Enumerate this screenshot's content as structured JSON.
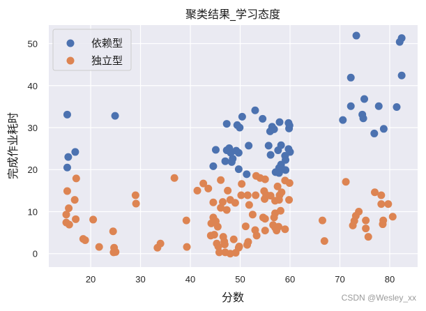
{
  "chart_data": {
    "type": "scatter",
    "title": "聚类结果_学习态度",
    "xlabel": "分数",
    "ylabel": "完成作业耗时",
    "xlim": [
      11.6,
      85.6
    ],
    "ylim": [
      -3.2,
      54.4
    ],
    "xticks": [
      20,
      30,
      40,
      50,
      60,
      70,
      80
    ],
    "yticks": [
      0,
      10,
      20,
      30,
      40,
      50
    ],
    "grid": true,
    "legend_position": "upper left",
    "series": [
      {
        "name": "依赖型",
        "color": "#4c72b0",
        "points": [
          [
            73.3,
            51.9
          ],
          [
            82.4,
            51.3
          ],
          [
            82.0,
            50.4
          ],
          [
            72.2,
            41.9
          ],
          [
            82.4,
            42.4
          ],
          [
            74.9,
            36.8
          ],
          [
            72.2,
            35.1
          ],
          [
            77.8,
            35.1
          ],
          [
            81.4,
            34.9
          ],
          [
            74.5,
            33.1
          ],
          [
            74.7,
            32.2
          ],
          [
            70.6,
            31.8
          ],
          [
            78.8,
            29.7
          ],
          [
            76.9,
            28.6
          ],
          [
            15.3,
            33.1
          ],
          [
            24.9,
            32.8
          ],
          [
            16.9,
            24.2
          ],
          [
            15.5,
            23.0
          ],
          [
            15.3,
            20.5
          ],
          [
            53.0,
            34.1
          ],
          [
            50.4,
            32.6
          ],
          [
            54.5,
            32.1
          ],
          [
            47.3,
            30.9
          ],
          [
            49.4,
            30.6
          ],
          [
            49.9,
            30.0
          ],
          [
            57.9,
            31.3
          ],
          [
            56.4,
            30.2
          ],
          [
            56.8,
            29.6
          ],
          [
            56.0,
            29.1
          ],
          [
            59.7,
            31.1
          ],
          [
            59.9,
            30.5
          ],
          [
            59.8,
            29.8
          ],
          [
            51.7,
            25.7
          ],
          [
            45.1,
            24.7
          ],
          [
            47.3,
            24.6
          ],
          [
            47.8,
            25.1
          ],
          [
            48.1,
            24.0
          ],
          [
            49.2,
            24.5
          ],
          [
            49.7,
            24.0
          ],
          [
            48.5,
            22.6
          ],
          [
            47.0,
            22.0
          ],
          [
            48.3,
            21.8
          ],
          [
            44.6,
            20.8
          ],
          [
            49.7,
            20.1
          ],
          [
            51.3,
            18.9
          ],
          [
            55.7,
            25.7
          ],
          [
            58.2,
            25.8
          ],
          [
            57.6,
            24.6
          ],
          [
            56.1,
            23.5
          ],
          [
            59.7,
            24.9
          ],
          [
            60.0,
            24.2
          ],
          [
            59.0,
            23.3
          ],
          [
            59.1,
            22.3
          ],
          [
            58.2,
            21.2
          ],
          [
            57.8,
            20.4
          ],
          [
            58.5,
            20.1
          ],
          [
            57.1,
            19.4
          ],
          [
            59.1,
            19.9
          ],
          [
            57.8,
            19.2
          ]
        ]
      },
      {
        "name": "独立型",
        "color": "#dd8452",
        "points": [
          [
            17.1,
            17.9
          ],
          [
            15.3,
            14.9
          ],
          [
            16.8,
            12.8
          ],
          [
            15.6,
            10.8
          ],
          [
            15.1,
            9.3
          ],
          [
            17.0,
            8.2
          ],
          [
            15.1,
            7.4
          ],
          [
            15.7,
            6.9
          ],
          [
            20.5,
            8.1
          ],
          [
            24.5,
            5.3
          ],
          [
            18.5,
            3.5
          ],
          [
            18.9,
            3.2
          ],
          [
            21.7,
            1.6
          ],
          [
            24.7,
            1.4
          ],
          [
            24.6,
            0.3
          ],
          [
            25.0,
            0.4
          ],
          [
            29.0,
            13.9
          ],
          [
            29.1,
            11.9
          ],
          [
            36.8,
            18.0
          ],
          [
            33.4,
            1.4
          ],
          [
            34.0,
            2.4
          ],
          [
            39.2,
            7.9
          ],
          [
            39.3,
            1.6
          ],
          [
            71.2,
            17.1
          ],
          [
            66.5,
            7.9
          ],
          [
            66.9,
            3.0
          ],
          [
            77.0,
            14.6
          ],
          [
            78.3,
            13.9
          ],
          [
            78.3,
            11.8
          ],
          [
            79.7,
            11.8
          ],
          [
            73.8,
            10.0
          ],
          [
            73.2,
            9.0
          ],
          [
            72.9,
            7.8
          ],
          [
            72.6,
            6.7
          ],
          [
            75.2,
            7.9
          ],
          [
            75.2,
            6.0
          ],
          [
            75.7,
            4.0
          ],
          [
            78.7,
            7.9
          ],
          [
            78.6,
            7.0
          ],
          [
            80.6,
            8.8
          ],
          [
            53.2,
            18.5
          ],
          [
            54.0,
            18.0
          ],
          [
            55.0,
            17.7
          ],
          [
            59.0,
            17.4
          ],
          [
            59.9,
            16.8
          ],
          [
            57.5,
            16.0
          ],
          [
            50.3,
            16.6
          ],
          [
            46.1,
            17.5
          ],
          [
            42.6,
            16.7
          ],
          [
            43.6,
            15.5
          ],
          [
            41.4,
            15.0
          ],
          [
            47.5,
            15.0
          ],
          [
            50.2,
            13.9
          ],
          [
            51.5,
            13.9
          ],
          [
            53.1,
            13.9
          ],
          [
            54.8,
            14.9
          ],
          [
            55.2,
            14.0
          ],
          [
            56.1,
            13.8
          ],
          [
            57.9,
            13.9
          ],
          [
            58.3,
            14.6
          ],
          [
            54.9,
            13.0
          ],
          [
            48.0,
            12.8
          ],
          [
            57.0,
            12.6
          ],
          [
            57.8,
            12.8
          ],
          [
            59.8,
            12.8
          ],
          [
            44.6,
            12.2
          ],
          [
            46.5,
            12.3
          ],
          [
            49.0,
            12.1
          ],
          [
            51.8,
            11.6
          ],
          [
            46.1,
            10.9
          ],
          [
            47.3,
            10.4
          ],
          [
            58.1,
            10.2
          ],
          [
            57.0,
            9.6
          ],
          [
            56.8,
            8.6
          ],
          [
            52.5,
            9.3
          ],
          [
            54.6,
            8.6
          ],
          [
            55.0,
            8.3
          ],
          [
            44.6,
            8.6
          ],
          [
            45.1,
            7.7
          ],
          [
            44.2,
            7.2
          ],
          [
            45.5,
            6.4
          ],
          [
            51.1,
            6.5
          ],
          [
            56.6,
            6.8
          ],
          [
            57.0,
            6.2
          ],
          [
            57.7,
            6.4
          ],
          [
            59.0,
            5.8
          ],
          [
            55.0,
            5.5
          ],
          [
            57.3,
            5.5
          ],
          [
            53.0,
            5.6
          ],
          [
            53.3,
            4.3
          ],
          [
            44.1,
            4.3
          ],
          [
            44.8,
            4.5
          ],
          [
            46.6,
            4.0
          ],
          [
            46.8,
            2.9
          ],
          [
            48.7,
            3.4
          ],
          [
            45.3,
            2.4
          ],
          [
            45.6,
            1.7
          ],
          [
            46.9,
            2.2
          ],
          [
            49.8,
            1.7
          ],
          [
            49.7,
            1.4
          ],
          [
            51.6,
            2.8
          ],
          [
            51.4,
            2.1
          ],
          [
            45.8,
            0.3
          ],
          [
            47.0,
            0.3
          ],
          [
            48.0,
            0.0
          ],
          [
            49.1,
            0.2
          ]
        ]
      }
    ]
  },
  "legend": {
    "items": [
      {
        "label": "依赖型",
        "color": "#4c72b0"
      },
      {
        "label": "独立型",
        "color": "#dd8452"
      }
    ]
  },
  "style": {
    "plot_bg": "#eaeaf2",
    "grid_color": "#ffffff"
  },
  "watermark": "CSDN @Wesley_xx"
}
